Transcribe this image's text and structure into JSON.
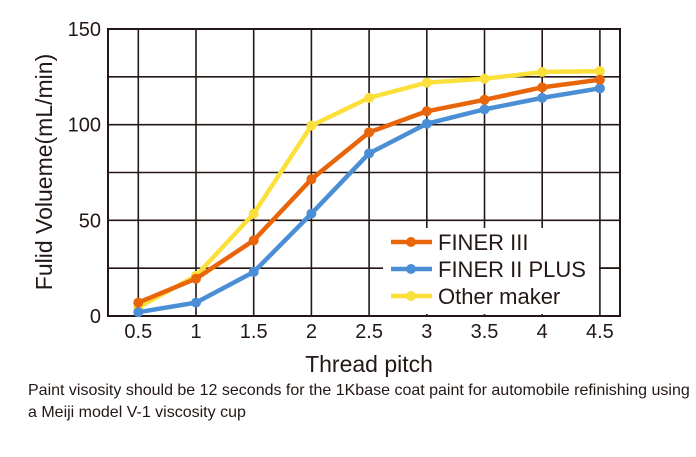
{
  "chart_data": {
    "type": "line",
    "title": "",
    "xlabel": "Thread pitch",
    "ylabel": "Fulid Volueme(mL/min)",
    "x": [
      0.5,
      1,
      1.5,
      2,
      2.5,
      3,
      3.5,
      4,
      4.5
    ],
    "x_tick_labels": [
      "0.5",
      "1",
      "1.5",
      "2",
      "2.5",
      "3",
      "3.5",
      "4",
      "4.5"
    ],
    "y_ticks": [
      0,
      50,
      100,
      150
    ],
    "y_tick_labels": [
      "0",
      "50",
      "100",
      "150"
    ],
    "ylim": [
      0,
      150
    ],
    "grid": true,
    "grid_y_step": 25,
    "legend_position": "bottom-right",
    "series": [
      {
        "name": "FINER III",
        "color": "#e8650a",
        "values": [
          7,
          19.5,
          39.5,
          71.5,
          96,
          107,
          113,
          119.5,
          123.5
        ]
      },
      {
        "name": "FINER II  PLUS",
        "color": "#4a8fd6",
        "values": [
          2,
          7,
          23,
          53.5,
          85,
          100.5,
          108,
          114,
          119
        ]
      },
      {
        "name": "Other maker",
        "color": "#fbe03c",
        "values": [
          4.5,
          21,
          53.5,
          99.5,
          114,
          122,
          124,
          127.5,
          128
        ]
      }
    ]
  },
  "note": "Paint visosity should be 12 seconds for the 1Kbase coat paint for automobile refinishing using a Meiji model V-1 viscosity cup"
}
